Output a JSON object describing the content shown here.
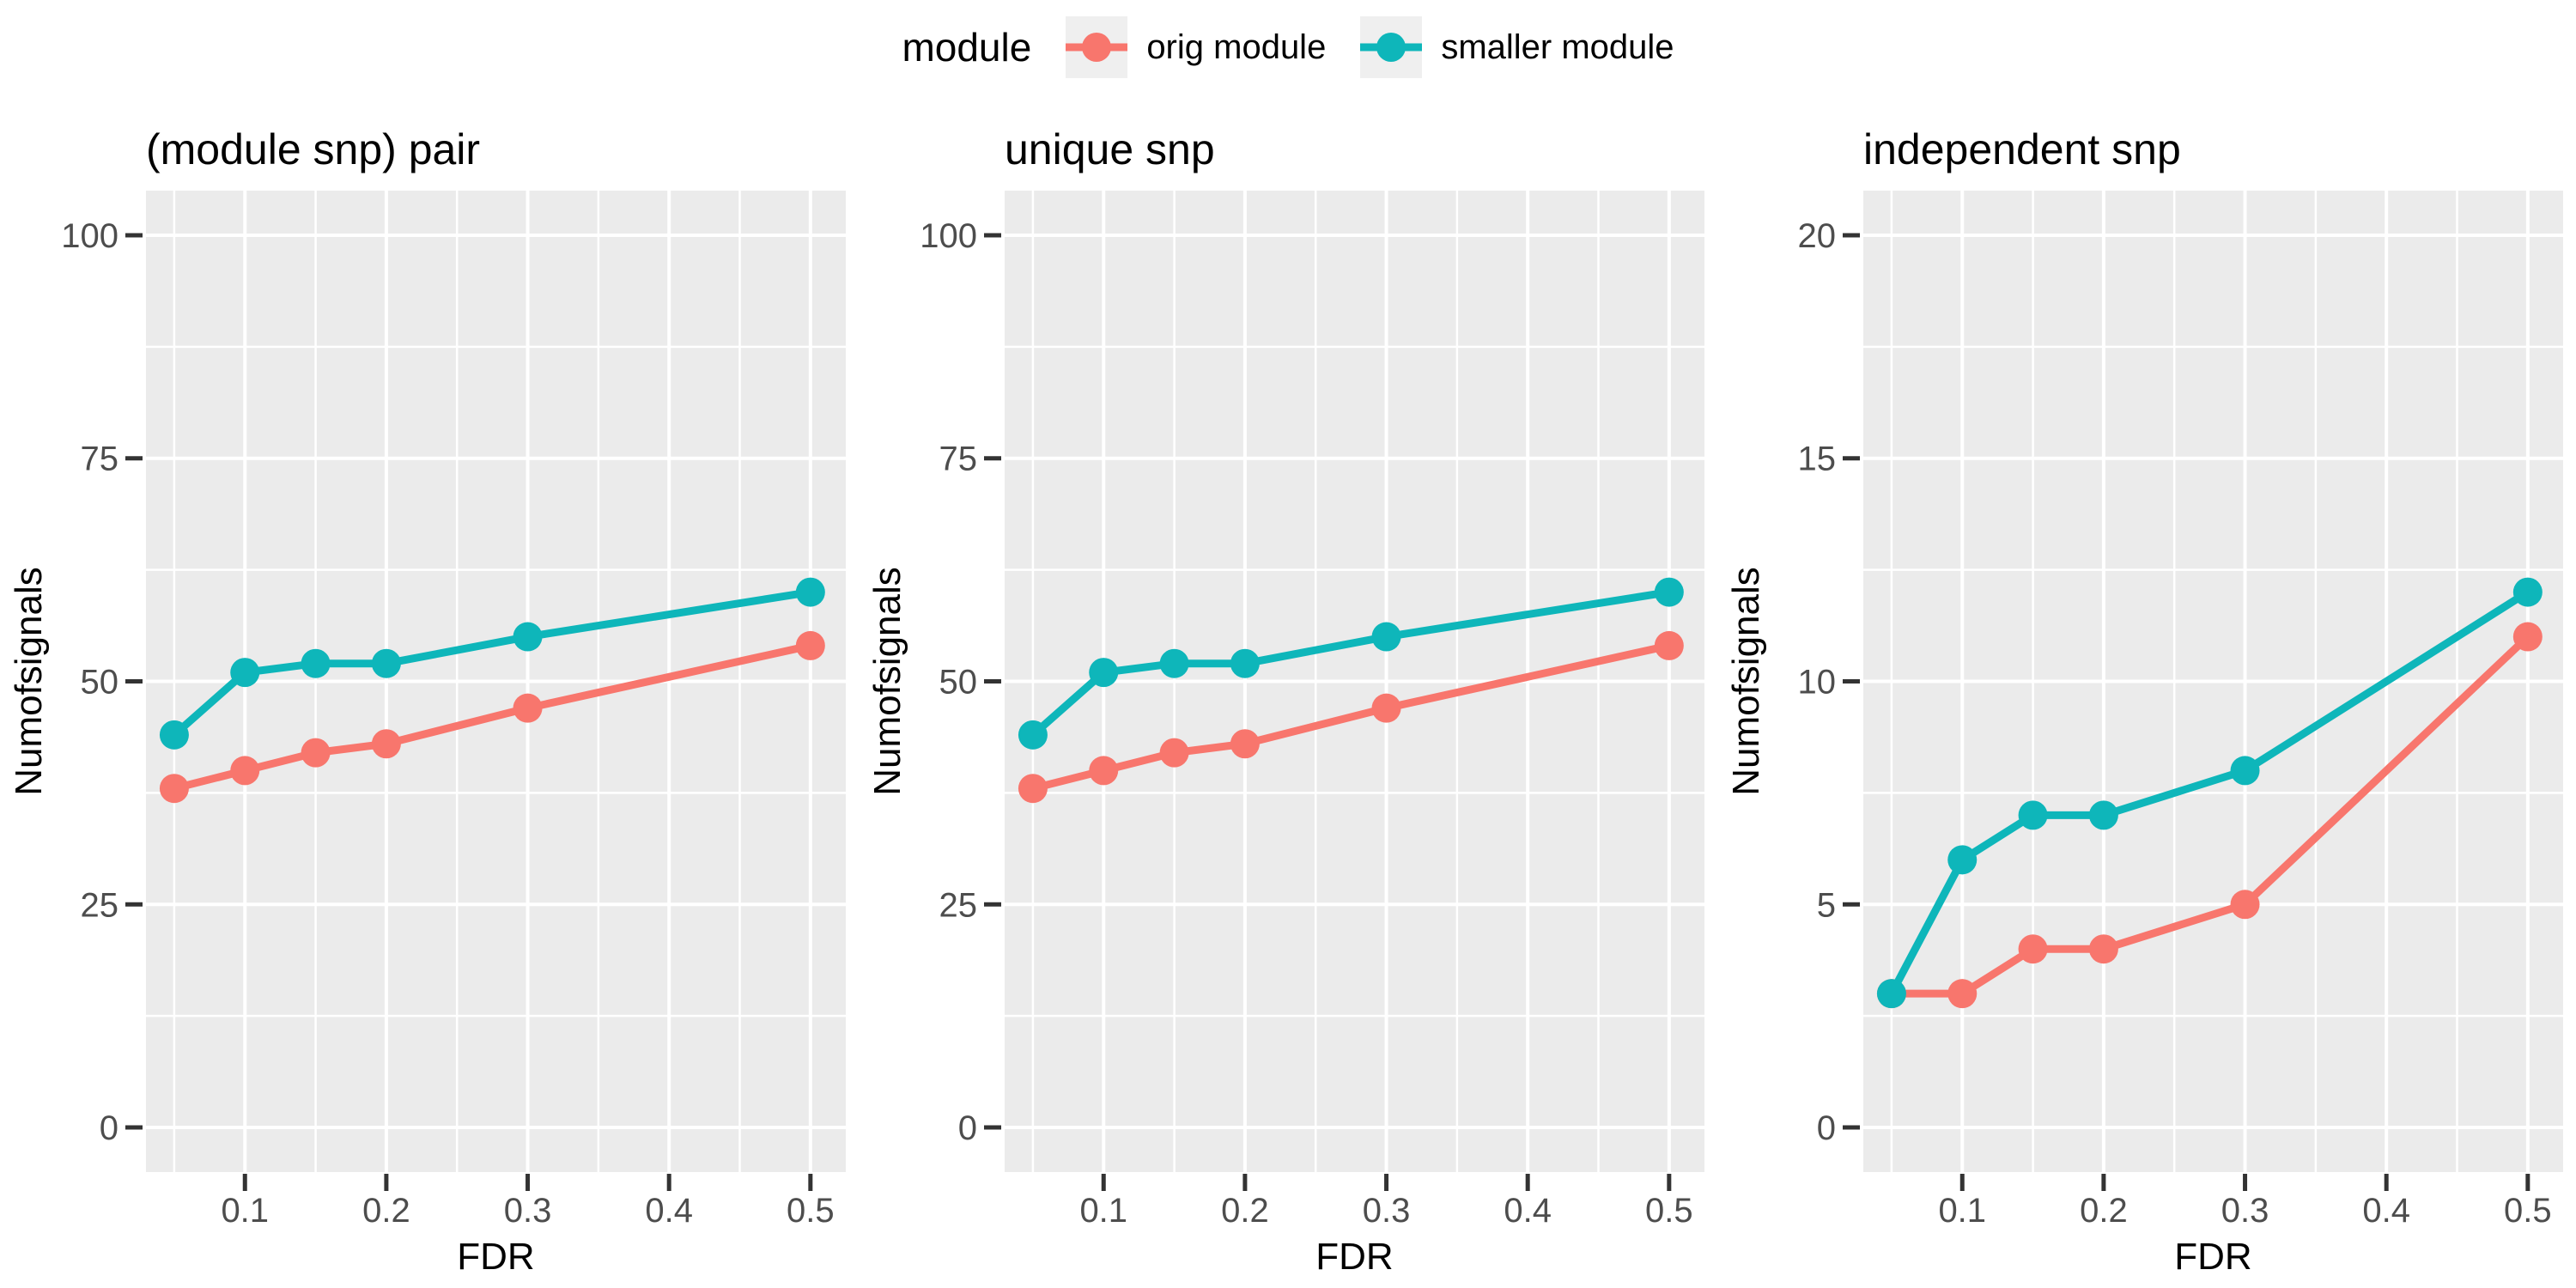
{
  "legend": {
    "title": "module",
    "items": [
      {
        "label": "orig module",
        "color": "#F8766D"
      },
      {
        "label": "smaller module",
        "color": "#0EB6BA"
      }
    ]
  },
  "theme": {
    "panel_background": "#EBEBEB",
    "grid_color": "#FFFFFF",
    "legend_key_background": "#EFEFEF",
    "tick_label_color": "#4D4D4D",
    "tick_mark_color": "#333333",
    "title_color": "#000000",
    "axis_title_color": "#000000"
  },
  "chart_data": [
    {
      "type": "line",
      "title": "(module snp) pair",
      "xlabel": "FDR",
      "ylabel": "Numofsignals",
      "x": [
        0.05,
        0.1,
        0.15,
        0.2,
        0.3,
        0.5
      ],
      "series": [
        {
          "name": "orig module",
          "color": "#F8766D",
          "values": [
            38,
            40,
            42,
            43,
            47,
            54
          ]
        },
        {
          "name": "smaller module",
          "color": "#0EB6BA",
          "values": [
            44,
            51,
            52,
            52,
            55,
            60
          ]
        }
      ],
      "ylim": [
        0,
        100
      ],
      "xlim": [
        0.03,
        0.525
      ],
      "yticks": [
        0,
        25,
        50,
        75,
        100
      ],
      "ytick_labels": [
        "0",
        "25",
        "50",
        "75",
        "100"
      ],
      "xticks": [
        0.1,
        0.2,
        0.3,
        0.4,
        0.5
      ],
      "xtick_labels": [
        "0.1",
        "0.2",
        "0.3",
        "0.4",
        "0.5"
      ],
      "grid": true,
      "legend_position": "top"
    },
    {
      "type": "line",
      "title": "unique snp",
      "xlabel": "FDR",
      "ylabel": "Numofsignals",
      "x": [
        0.05,
        0.1,
        0.15,
        0.2,
        0.3,
        0.5
      ],
      "series": [
        {
          "name": "orig module",
          "color": "#F8766D",
          "values": [
            38,
            40,
            42,
            43,
            47,
            54
          ]
        },
        {
          "name": "smaller module",
          "color": "#0EB6BA",
          "values": [
            44,
            51,
            52,
            52,
            55,
            60
          ]
        }
      ],
      "ylim": [
        0,
        100
      ],
      "xlim": [
        0.03,
        0.525
      ],
      "yticks": [
        0,
        25,
        50,
        75,
        100
      ],
      "ytick_labels": [
        "0",
        "25",
        "50",
        "75",
        "100"
      ],
      "xticks": [
        0.1,
        0.2,
        0.3,
        0.4,
        0.5
      ],
      "xtick_labels": [
        "0.1",
        "0.2",
        "0.3",
        "0.4",
        "0.5"
      ],
      "grid": true,
      "legend_position": "top"
    },
    {
      "type": "line",
      "title": "independent snp",
      "xlabel": "FDR",
      "ylabel": "Numofsignals",
      "x": [
        0.05,
        0.1,
        0.15,
        0.2,
        0.3,
        0.5
      ],
      "series": [
        {
          "name": "orig module",
          "color": "#F8766D",
          "values": [
            3,
            3,
            4,
            4,
            5,
            11
          ]
        },
        {
          "name": "smaller module",
          "color": "#0EB6BA",
          "values": [
            3,
            6,
            7,
            7,
            8,
            12
          ]
        }
      ],
      "ylim": [
        0,
        20
      ],
      "xlim": [
        0.03,
        0.525
      ],
      "yticks": [
        0,
        5,
        10,
        15,
        20
      ],
      "ytick_labels": [
        "0",
        "5",
        "10",
        "15",
        "20"
      ],
      "xticks": [
        0.1,
        0.2,
        0.3,
        0.4,
        0.5
      ],
      "xtick_labels": [
        "0.1",
        "0.2",
        "0.3",
        "0.4",
        "0.5"
      ],
      "grid": true,
      "legend_position": "top"
    }
  ]
}
